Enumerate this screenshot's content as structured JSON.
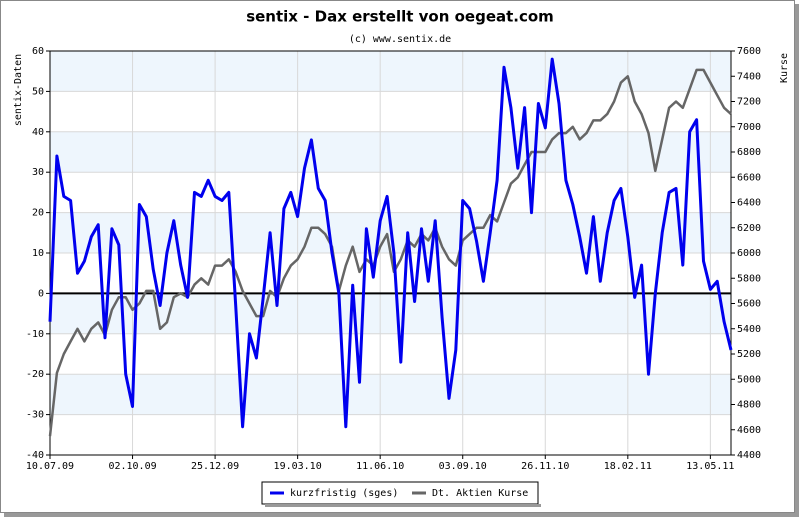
{
  "chart_data": {
    "type": "line",
    "title": "sentix - Dax erstellt von oegeat.com",
    "subtitle": "(c) www.sentix.de",
    "ylabel": "sentix-Daten",
    "y2label": "Kurse",
    "categories": [
      "10.07.09",
      null,
      null,
      null,
      null,
      null,
      null,
      null,
      null,
      null,
      null,
      null,
      "02.10.09",
      null,
      null,
      null,
      null,
      null,
      null,
      null,
      null,
      null,
      null,
      null,
      "25.12.09",
      null,
      null,
      null,
      null,
      null,
      null,
      null,
      null,
      null,
      null,
      null,
      "19.03.10",
      null,
      null,
      null,
      null,
      null,
      null,
      null,
      null,
      null,
      null,
      null,
      "11.06.10",
      null,
      null,
      null,
      null,
      null,
      null,
      null,
      null,
      null,
      null,
      null,
      "03.09.10",
      null,
      null,
      null,
      null,
      null,
      null,
      null,
      null,
      null,
      null,
      null,
      "26.11.10",
      null,
      null,
      null,
      null,
      null,
      null,
      null,
      null,
      null,
      null,
      null,
      "18.02.11",
      null,
      null,
      null,
      null,
      null,
      null,
      null,
      null,
      null,
      null,
      null,
      "13.05.11",
      null,
      null,
      null
    ],
    "series": [
      {
        "name": "kurzfristig (sges)",
        "color": "#0000ee",
        "axis": "y",
        "values": [
          -7,
          34,
          24,
          23,
          5,
          8,
          14,
          17,
          -11,
          16,
          12,
          -20,
          -28,
          22,
          19,
          6,
          -3,
          10,
          18,
          7,
          -1,
          25,
          24,
          28,
          24,
          23,
          25,
          -3,
          -33,
          -10,
          -16,
          -1,
          15,
          -3,
          21,
          25,
          19,
          31,
          38,
          26,
          23,
          10,
          0,
          -33,
          2,
          -22,
          16,
          4,
          18,
          24,
          10,
          -17,
          15,
          -2,
          16,
          3,
          18,
          -6,
          -26,
          -14,
          23,
          21,
          13,
          3,
          15,
          28,
          56,
          46,
          31,
          46,
          20,
          47,
          41,
          58,
          47,
          28,
          22,
          14,
          5,
          19,
          3,
          15,
          23,
          26,
          14,
          -1,
          7,
          -20,
          0,
          15,
          25,
          26,
          7,
          40,
          43,
          8,
          1,
          3,
          -7,
          -14
        ]
      },
      {
        "name": "Dt. Aktien Kurse",
        "color": "#666666",
        "axis": "y2",
        "values": [
          4550,
          5050,
          5200,
          5300,
          5400,
          5300,
          5400,
          5450,
          5350,
          5550,
          5650,
          5650,
          5550,
          5600,
          5700,
          5700,
          5400,
          5450,
          5650,
          5680,
          5650,
          5750,
          5800,
          5750,
          5900,
          5900,
          5950,
          5850,
          5700,
          5600,
          5500,
          5500,
          5700,
          5650,
          5800,
          5900,
          5950,
          6050,
          6200,
          6200,
          6150,
          6050,
          5700,
          5900,
          6050,
          5850,
          5950,
          5900,
          6050,
          6150,
          5850,
          5950,
          6100,
          6050,
          6150,
          6100,
          6200,
          6050,
          5950,
          5900,
          6100,
          6150,
          6200,
          6200,
          6300,
          6250,
          6400,
          6550,
          6600,
          6700,
          6800,
          6800,
          6800,
          6900,
          6950,
          6950,
          7000,
          6900,
          6950,
          7050,
          7050,
          7100,
          7200,
          7350,
          7400,
          7200,
          7100,
          6950,
          6650,
          6900,
          7150,
          7200,
          7150,
          7300,
          7450,
          7450,
          7350,
          7250,
          7150,
          7100
        ]
      }
    ],
    "ylim": [
      -40,
      60
    ],
    "yticks": [
      -40,
      -30,
      -20,
      -10,
      0,
      10,
      20,
      30,
      40,
      50,
      60
    ],
    "y2lim": [
      4400,
      7600
    ],
    "y2ticks": [
      4400,
      4600,
      4800,
      5000,
      5200,
      5400,
      5600,
      5800,
      6000,
      6200,
      6400,
      6600,
      6800,
      7000,
      7200,
      7400,
      7600
    ],
    "grid": true,
    "legend": "bottom"
  }
}
